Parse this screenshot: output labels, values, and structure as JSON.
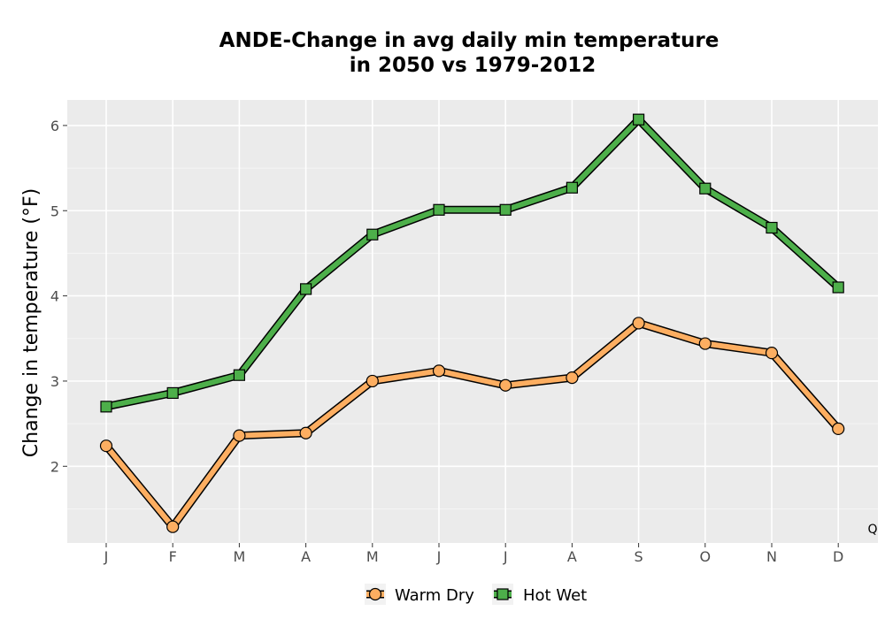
{
  "chart_data": {
    "type": "line",
    "title_line1": "ANDE-Change in avg daily min temperature",
    "title_line2": "in 2050 vs 1979-2012",
    "xlabel": "",
    "ylabel": "Change in temperature (°F)",
    "categories": [
      "J",
      "F",
      "M",
      "A",
      "M",
      "J",
      "J",
      "A",
      "S",
      "O",
      "N",
      "D"
    ],
    "yticks": [
      "2",
      "3",
      "4",
      "5",
      "6"
    ],
    "ylim": [
      1.1,
      6.3
    ],
    "grid": true,
    "legend_position": "bottom",
    "corner_note": "Q",
    "series": [
      {
        "name": "Warm Dry",
        "color": "#fdae61",
        "marker": "circle",
        "values": [
          2.24,
          1.29,
          2.36,
          2.39,
          3.0,
          3.12,
          2.95,
          3.04,
          3.68,
          3.44,
          3.33,
          2.44
        ]
      },
      {
        "name": "Hot Wet",
        "color": "#4daf4a",
        "marker": "square",
        "values": [
          2.7,
          2.86,
          3.07,
          4.08,
          4.72,
          5.01,
          5.01,
          5.27,
          6.07,
          5.26,
          4.8,
          4.1
        ]
      }
    ]
  }
}
